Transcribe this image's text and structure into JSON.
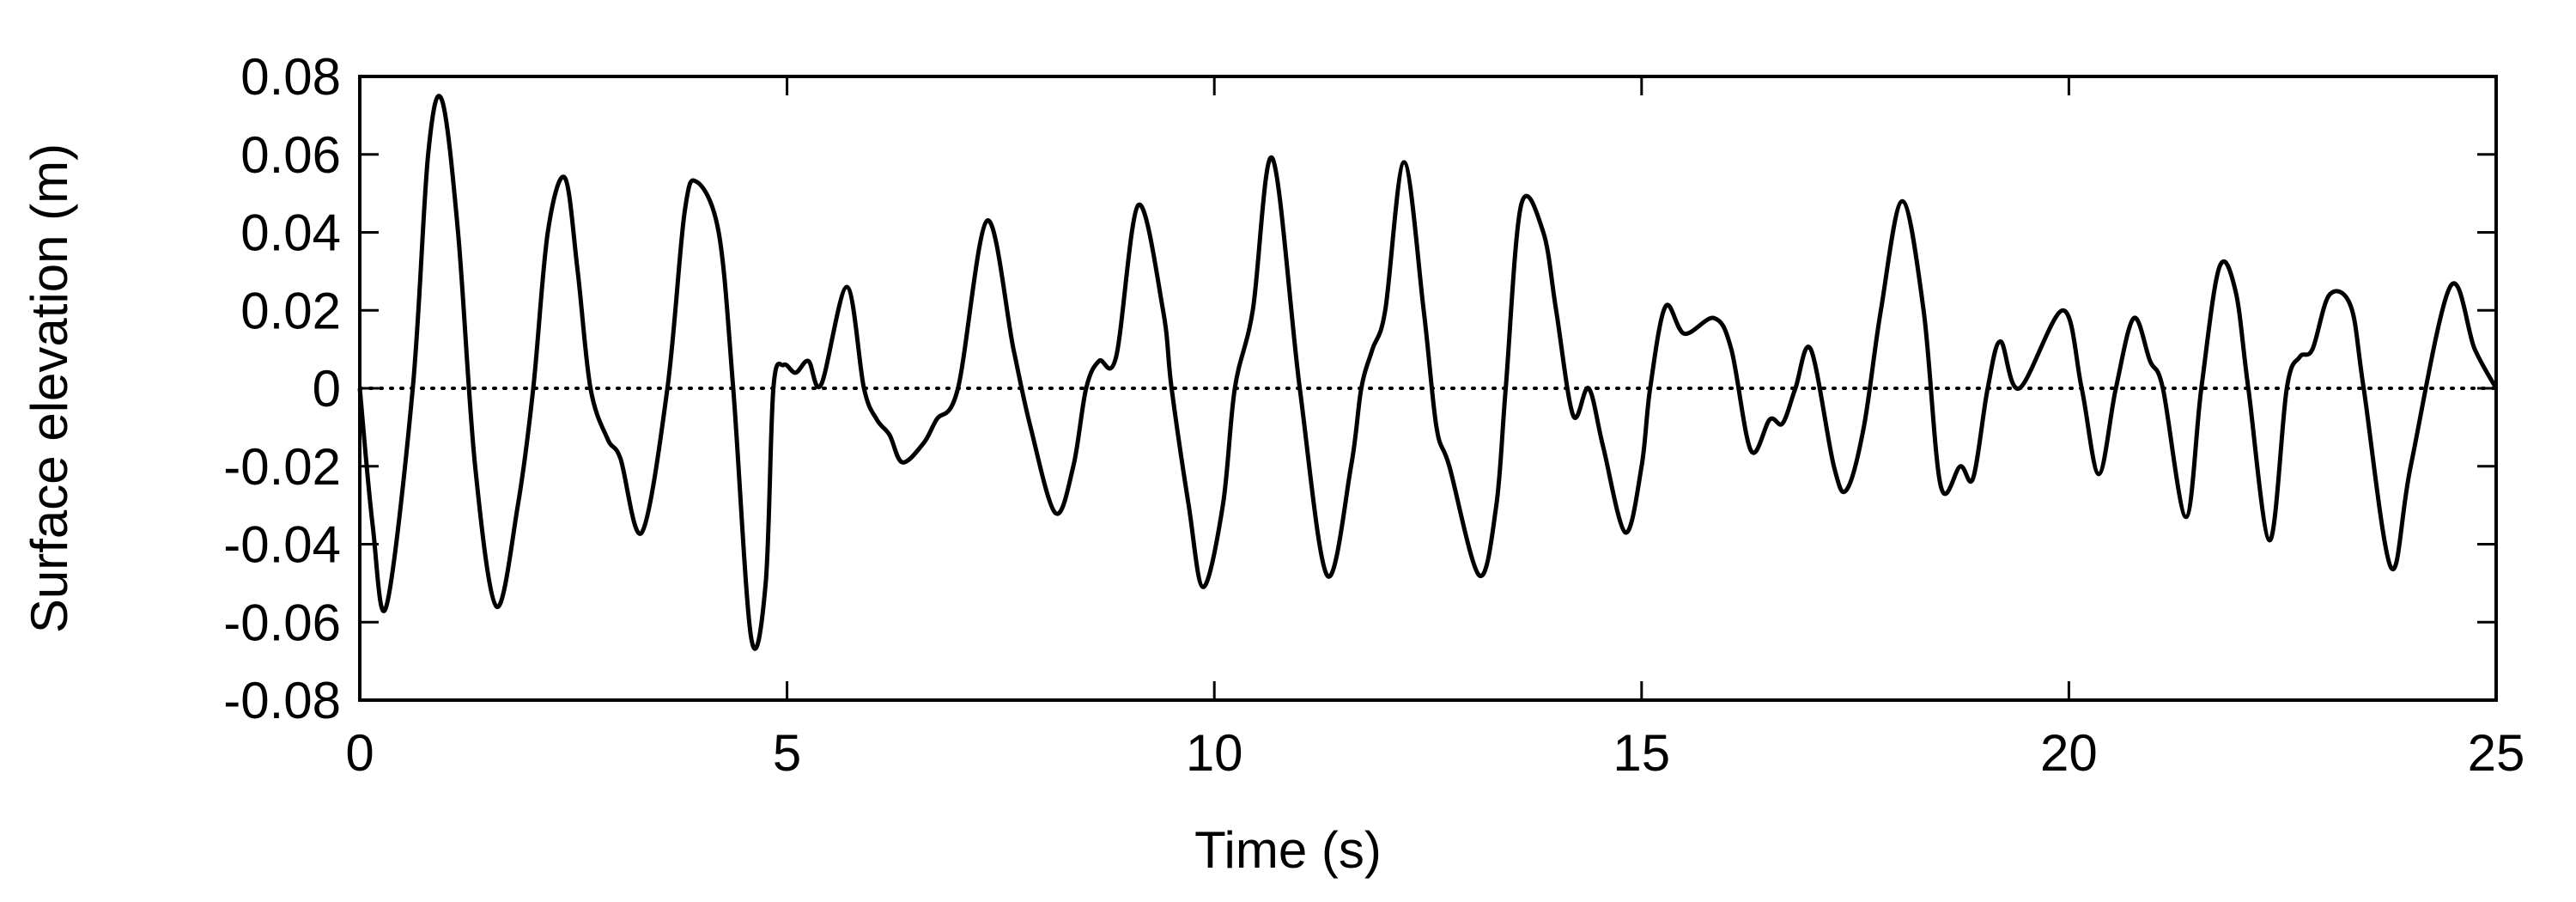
{
  "chart_data": {
    "type": "line",
    "x_label": "Time (s)",
    "y_label": "Surface elevation (m)",
    "xlim": [
      0,
      25
    ],
    "xticks": [
      0,
      5,
      10,
      15,
      20,
      25
    ],
    "ylim": [
      -0.08,
      0.08
    ],
    "yticks": [
      -0.08,
      -0.06,
      -0.04,
      -0.02,
      0,
      0.02,
      0.04,
      0.06,
      0.08
    ],
    "hline": 0,
    "grid": false,
    "x": [
      0,
      0.15,
      0.31,
      0.62,
      0.8,
      0.96,
      1.15,
      1.35,
      1.6,
      1.85,
      2.03,
      2.2,
      2.4,
      2.55,
      2.7,
      2.9,
      3.05,
      3.3,
      3.6,
      3.8,
      3.94,
      4.2,
      4.37,
      4.58,
      4.75,
      4.84,
      4.96,
      5.1,
      5.25,
      5.4,
      5.7,
      5.9,
      6.05,
      6.2,
      6.35,
      6.6,
      6.75,
      7.0,
      7.34,
      7.65,
      7.85,
      8.14,
      8.35,
      8.5,
      8.65,
      8.85,
      9.11,
      9.4,
      9.5,
      9.7,
      9.87,
      10.1,
      10.24,
      10.45,
      10.68,
      11.0,
      11.32,
      11.6,
      11.72,
      11.85,
      12.0,
      12.22,
      12.45,
      12.6,
      12.75,
      13.1,
      13.3,
      13.41,
      13.59,
      13.85,
      14.0,
      14.2,
      14.38,
      14.55,
      14.81,
      15.0,
      15.1,
      15.28,
      15.5,
      15.85,
      16.05,
      16.28,
      16.5,
      16.65,
      16.8,
      16.98,
      17.25,
      17.4,
      17.6,
      17.8,
      18.05,
      18.3,
      18.5,
      18.73,
      18.88,
      19.05,
      19.2,
      19.42,
      19.93,
      20.15,
      20.35,
      20.55,
      20.76,
      20.95,
      21.1,
      21.37,
      21.55,
      21.76,
      21.95,
      22.1,
      22.35,
      22.55,
      22.7,
      22.85,
      23.05,
      23.3,
      23.45,
      23.77,
      24.0,
      24.46,
      24.75,
      25
    ],
    "series": [
      {
        "name": "elevation",
        "color": "#000000",
        "values": [
          0,
          -0.035,
          -0.056,
          0,
          0.06,
          0.074,
          0.04,
          -0.02,
          -0.056,
          -0.03,
          0,
          0.04,
          0.054,
          0.03,
          0,
          -0.013,
          -0.018,
          -0.037,
          0,
          0.045,
          0.053,
          0.04,
          0,
          -0.064,
          -0.05,
          0,
          0.006,
          0.004,
          0.007,
          0.001,
          0.026,
          0,
          -0.008,
          -0.012,
          -0.019,
          -0.014,
          -0.008,
          0,
          0.043,
          0.01,
          -0.01,
          -0.032,
          -0.02,
          0,
          0.007,
          0.008,
          0.047,
          0.02,
          0,
          -0.03,
          -0.051,
          -0.03,
          0,
          0.02,
          0.059,
          0,
          -0.048,
          -0.02,
          0,
          0.01,
          0.02,
          0.058,
          0.02,
          -0.01,
          -0.02,
          -0.048,
          -0.03,
          0,
          0.047,
          0.04,
          0.02,
          -0.007,
          0,
          -0.015,
          -0.037,
          -0.02,
          0,
          0.021,
          0.014,
          0.018,
          0.01,
          -0.016,
          -0.008,
          -0.009,
          0,
          0.01,
          -0.02,
          -0.026,
          -0.01,
          0.02,
          0.048,
          0.02,
          -0.025,
          -0.02,
          -0.023,
          0,
          0.012,
          0,
          0.02,
          0,
          -0.022,
          0,
          0.018,
          0.007,
          0,
          -0.033,
          0,
          0.031,
          0.025,
          0,
          -0.039,
          0,
          0.008,
          0.01,
          0.024,
          0.021,
          0,
          -0.046,
          -0.02,
          0.026,
          0.01,
          0
        ]
      }
    ]
  }
}
